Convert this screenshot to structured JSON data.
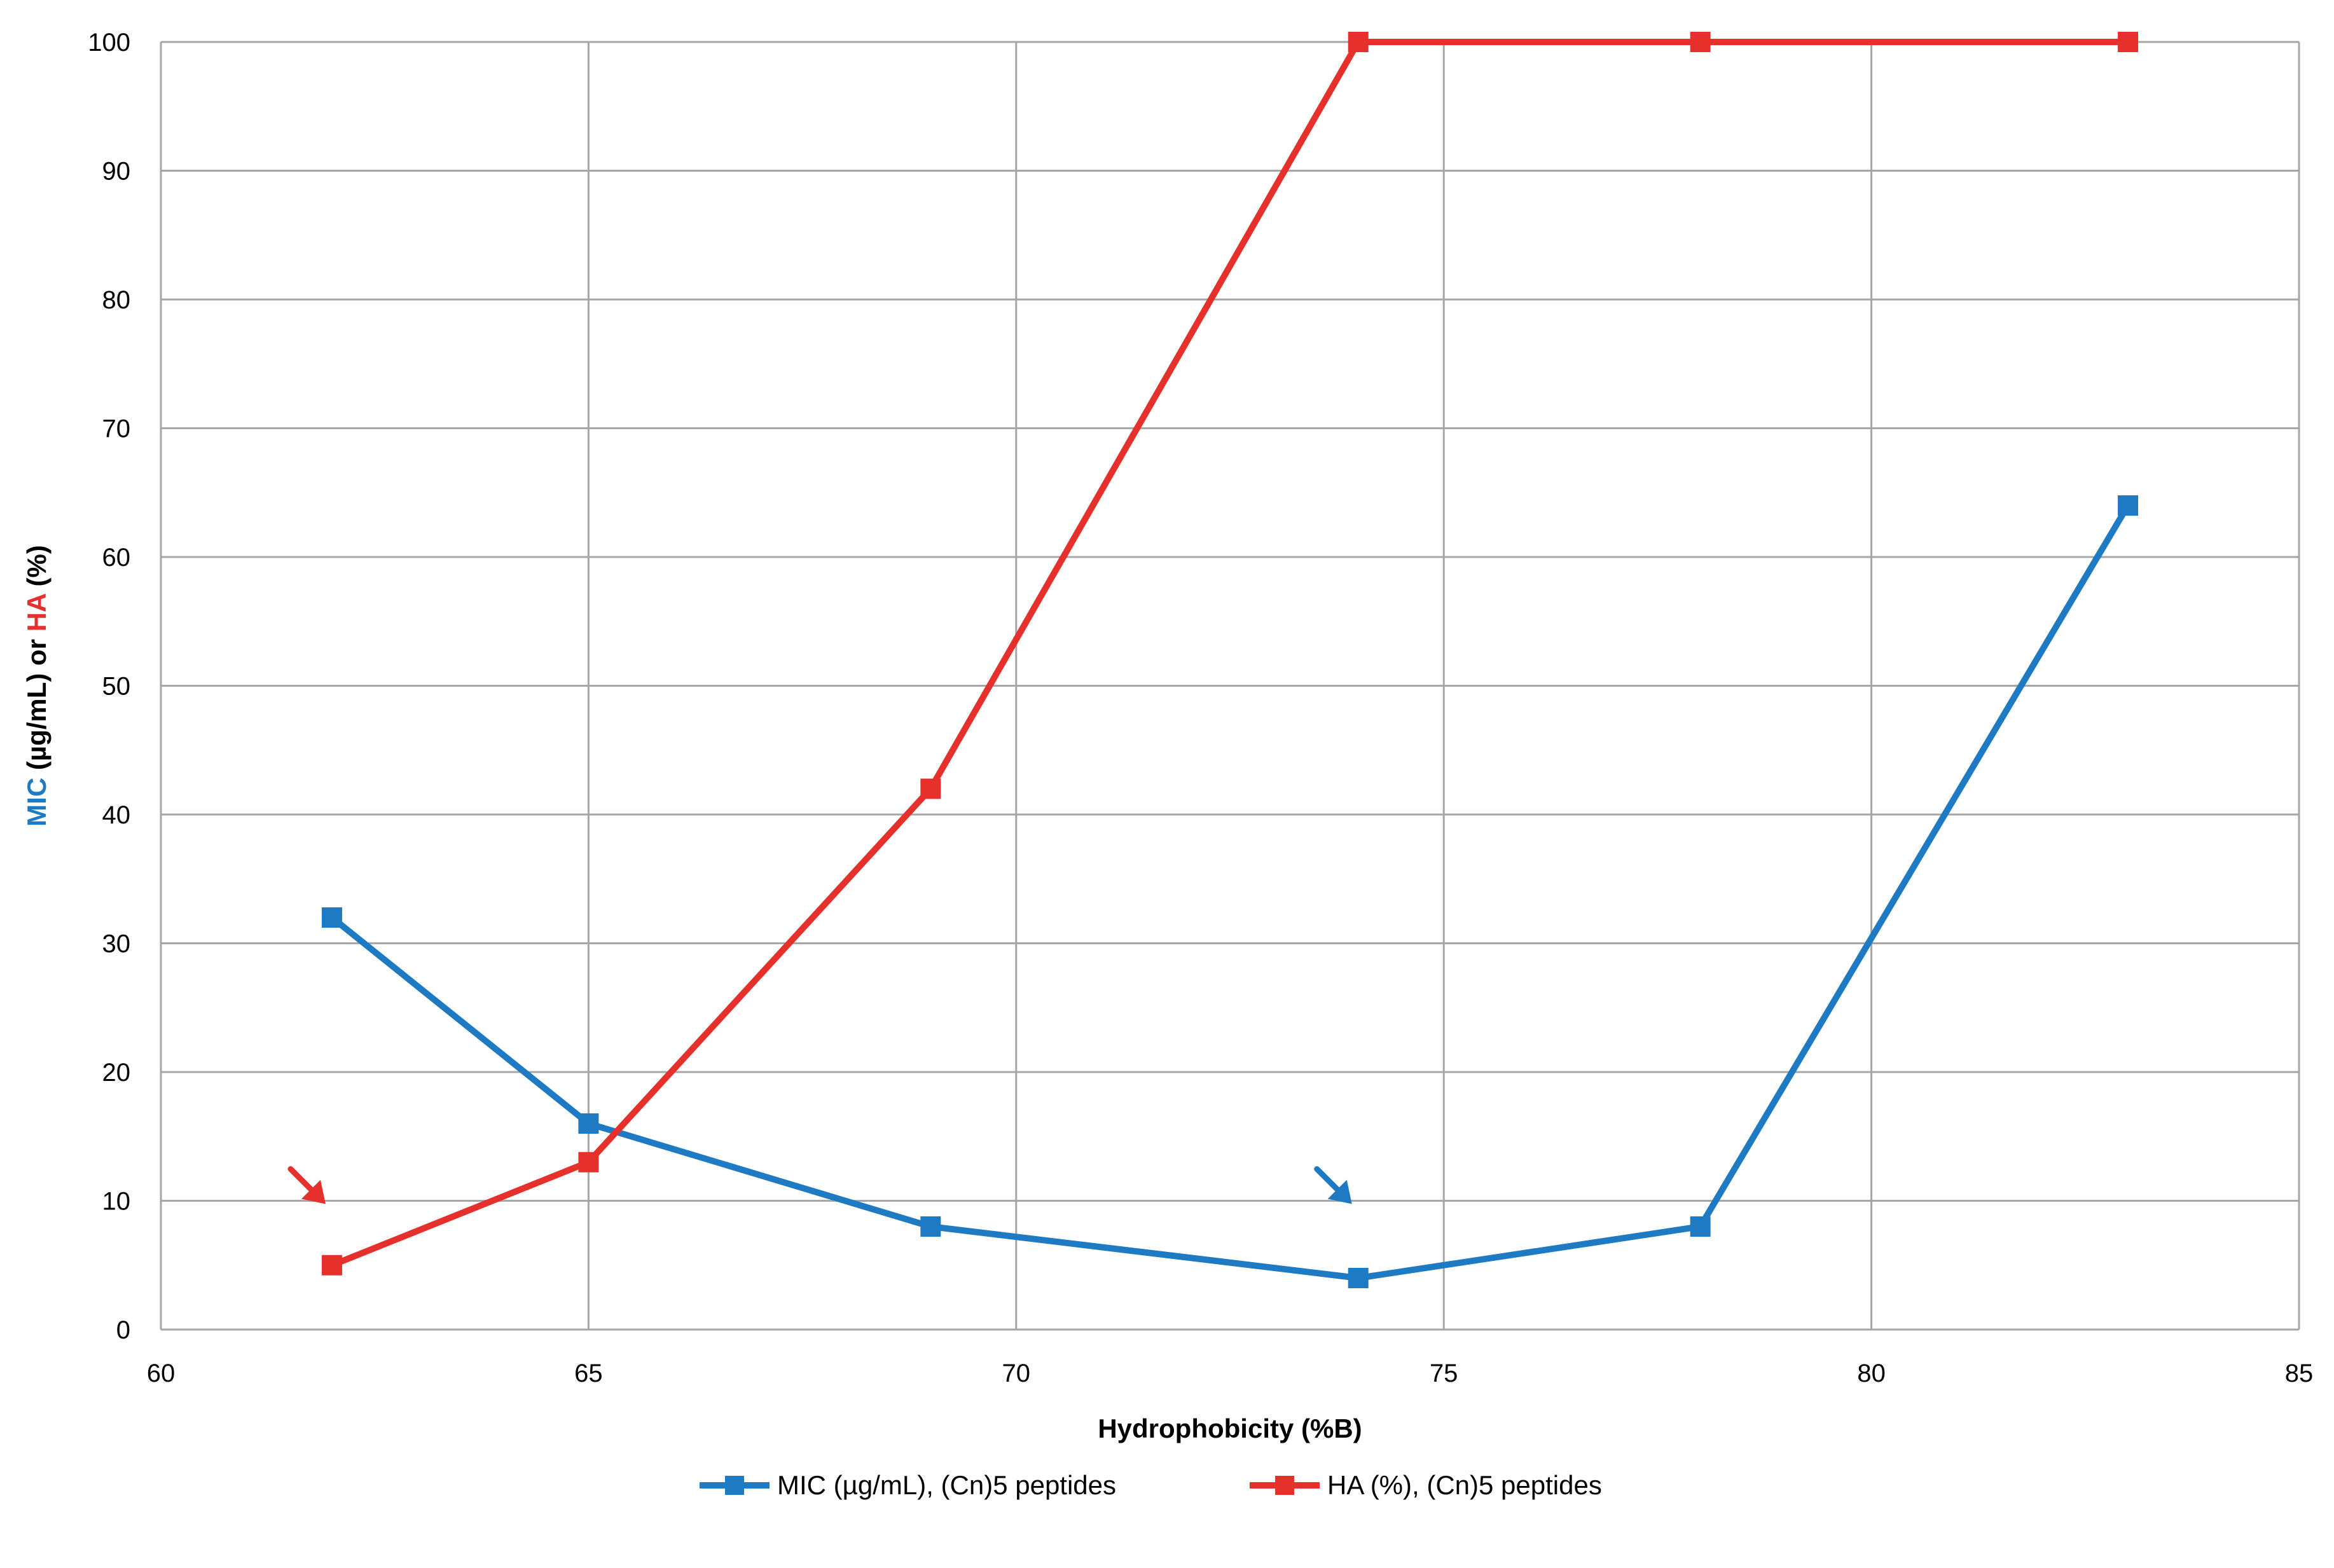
{
  "chart_data": {
    "type": "line",
    "xlabel": "Hydrophobicity (%B)",
    "ylabel": {
      "parts": [
        {
          "text": "MIC",
          "color": "#1F7AC4",
          "bold": true
        },
        {
          "text": " (µg/mL) or ",
          "color": "#000000",
          "bold": true
        },
        {
          "text": "HA",
          "color": "#E5302C",
          "bold": true
        },
        {
          "text": " (%)",
          "color": "#000000",
          "bold": true
        }
      ]
    },
    "xlim": [
      60,
      85
    ],
    "ylim": [
      0,
      100
    ],
    "xticks": [
      "60",
      "65",
      "70",
      "75",
      "80",
      "85"
    ],
    "yticks": [
      "0",
      "10",
      "20",
      "30",
      "40",
      "50",
      "60",
      "70",
      "80",
      "90",
      "100"
    ],
    "grid": true,
    "legend_position": "bottom",
    "series": [
      {
        "name": "MIC (µg/mL), (Cn)5 peptides",
        "color": "#1F7AC4",
        "marker": "square",
        "x": [
          62,
          65,
          69,
          74,
          78,
          83
        ],
        "y": [
          32,
          16,
          8,
          4,
          8,
          64
        ]
      },
      {
        "name": "HA (%), (Cn)5 peptides",
        "color": "#E5302C",
        "marker": "square",
        "x": [
          62,
          65,
          69,
          74,
          78,
          83
        ],
        "y": [
          5,
          13,
          42,
          100,
          100,
          100
        ]
      }
    ],
    "annotations": [
      {
        "type": "arrow",
        "color": "#E5302C",
        "points_to": {
          "x": 62,
          "y": 10
        }
      },
      {
        "type": "arrow",
        "color": "#1F7AC4",
        "points_to": {
          "x": 74,
          "y": 10
        }
      }
    ]
  }
}
